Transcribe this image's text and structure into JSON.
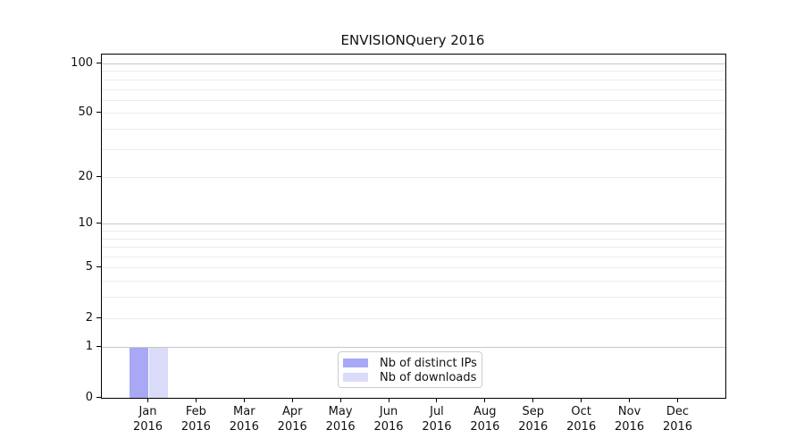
{
  "chart_data": {
    "type": "bar",
    "title": "ENVISIONQuery 2016",
    "categories": [
      "Jan",
      "Feb",
      "Mar",
      "Apr",
      "May",
      "Jun",
      "Jul",
      "Aug",
      "Sep",
      "Oct",
      "Nov",
      "Dec"
    ],
    "category_year": "2016",
    "series": [
      {
        "name": "Nb of distinct IPs",
        "color": "#a8a8f6",
        "values": [
          1,
          0,
          0,
          0,
          0,
          0,
          0,
          0,
          0,
          0,
          0,
          0
        ]
      },
      {
        "name": "Nb of downloads",
        "color": "#dadaf9",
        "values": [
          1,
          0,
          0,
          0,
          0,
          0,
          0,
          0,
          0,
          0,
          0,
          0
        ]
      }
    ],
    "xlabel": "",
    "ylabel": "",
    "y_axis": {
      "scale": "log10(value+1)",
      "max": 114,
      "major_ticks": [
        0,
        1,
        2,
        5,
        10,
        20,
        50,
        100
      ],
      "minor_ticks": [
        3,
        4,
        6,
        7,
        8,
        9,
        30,
        40,
        60,
        70,
        80,
        90
      ],
      "emphasized_gridlines": [
        1,
        10,
        100
      ]
    },
    "grid": {
      "emphasis_color": "#c8c8c8",
      "light_color": "#ececec"
    },
    "legend": {
      "position": "lower-center"
    }
  }
}
